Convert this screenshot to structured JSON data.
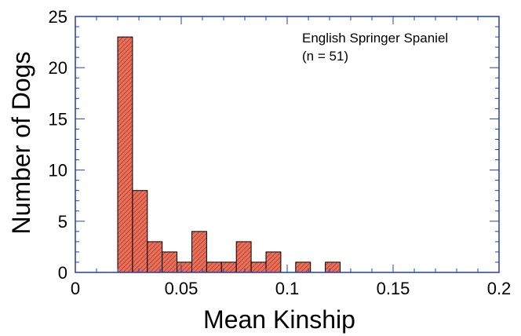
{
  "chart_data": {
    "type": "bar",
    "title": "",
    "xlabel": "Mean Kinship",
    "ylabel": "Number of Dogs",
    "xlim": [
      0,
      0.2
    ],
    "ylim": [
      0,
      25
    ],
    "x_ticks": [
      "0",
      "0.05",
      "0.1",
      "0.15",
      "0.2"
    ],
    "y_ticks": [
      "0",
      "5",
      "10",
      "15",
      "20",
      "25"
    ],
    "bin_width": 0.007,
    "bins": [
      {
        "start": 0.02,
        "count": 23
      },
      {
        "start": 0.027,
        "count": 8
      },
      {
        "start": 0.034,
        "count": 3
      },
      {
        "start": 0.041,
        "count": 2
      },
      {
        "start": 0.048,
        "count": 1
      },
      {
        "start": 0.055,
        "count": 4
      },
      {
        "start": 0.062,
        "count": 1
      },
      {
        "start": 0.069,
        "count": 1
      },
      {
        "start": 0.076,
        "count": 3
      },
      {
        "start": 0.083,
        "count": 1
      },
      {
        "start": 0.09,
        "count": 2
      },
      {
        "start": 0.104,
        "count": 1
      },
      {
        "start": 0.118,
        "count": 1
      }
    ],
    "annotation": {
      "line1": "English Springer Spaniel",
      "line2": "(n = 51)"
    },
    "colors": {
      "bar_fill": "#e8705a",
      "bar_hatch": "#9a2a1a",
      "axis": "#1f3fb3"
    },
    "grid": false
  }
}
